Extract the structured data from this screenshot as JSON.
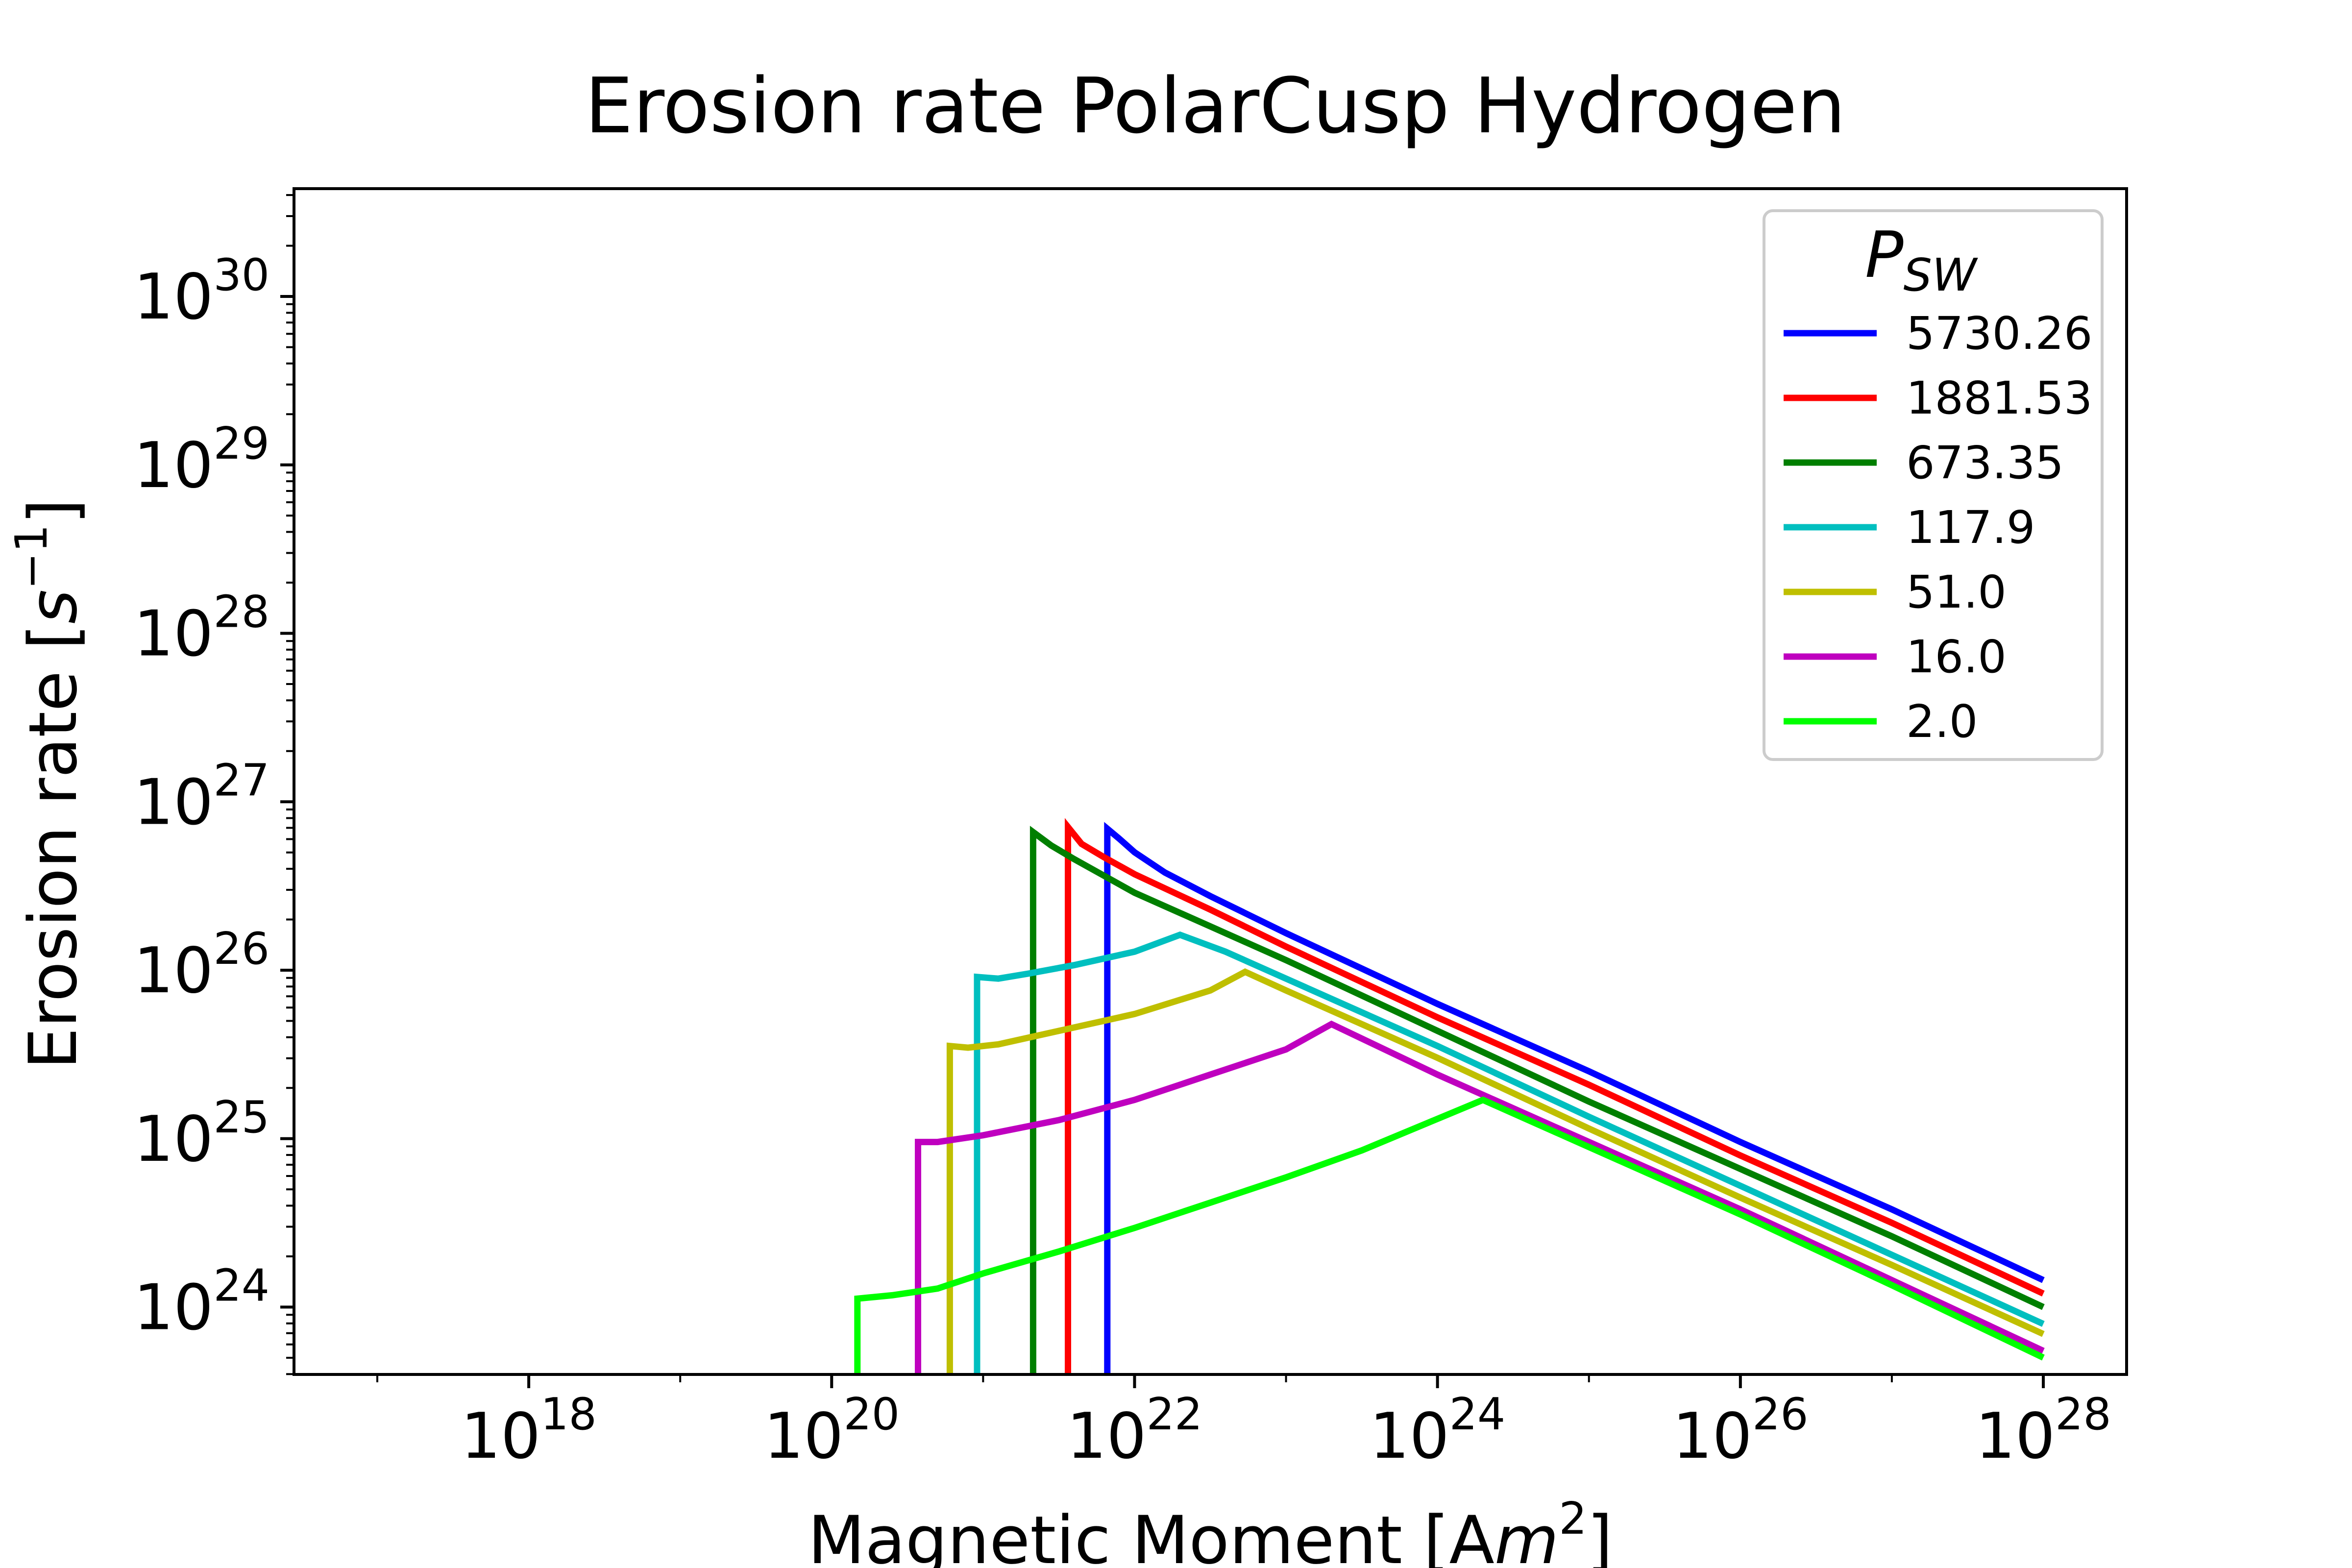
{
  "chart_data": {
    "type": "line",
    "title": "Erosion rate PolarCusp Hydrogen",
    "xlabel": {
      "main": "Magnetic Moment [A",
      "italic": "m",
      "sup": "2",
      "end": "]"
    },
    "ylabel": {
      "main": "Erosion rate [",
      "italic": "s",
      "sup": "−1",
      "end": "]"
    },
    "x_scale": "log",
    "y_scale": "log",
    "xlim_log10": [
      16.45,
      28.55
    ],
    "ylim_log10": [
      23.6,
      30.64
    ],
    "x_ticks": [
      {
        "base": "10",
        "exp": "18",
        "log": 18
      },
      {
        "base": "10",
        "exp": "20",
        "log": 20
      },
      {
        "base": "10",
        "exp": "22",
        "log": 22
      },
      {
        "base": "10",
        "exp": "24",
        "log": 24
      },
      {
        "base": "10",
        "exp": "26",
        "log": 26
      },
      {
        "base": "10",
        "exp": "28",
        "log": 28
      }
    ],
    "y_ticks": [
      {
        "base": "10",
        "exp": "24",
        "log": 24
      },
      {
        "base": "10",
        "exp": "25",
        "log": 25
      },
      {
        "base": "10",
        "exp": "26",
        "log": 26
      },
      {
        "base": "10",
        "exp": "27",
        "log": 27
      },
      {
        "base": "10",
        "exp": "28",
        "log": 28
      },
      {
        "base": "10",
        "exp": "29",
        "log": 29
      },
      {
        "base": "10",
        "exp": "30",
        "log": 30
      }
    ],
    "grid": false,
    "legend": {
      "title_main": "P",
      "title_sub": "SW",
      "placement": "top-right"
    },
    "series": [
      {
        "name": "5730.26",
        "color": "#0000ff",
        "points": [
          [
            21.82,
            23.6
          ],
          [
            21.82,
            26.84
          ],
          [
            21.9,
            26.78
          ],
          [
            22.0,
            26.7
          ],
          [
            22.2,
            26.58
          ],
          [
            22.5,
            26.44
          ],
          [
            23.0,
            26.22
          ],
          [
            24.0,
            25.8
          ],
          [
            25.0,
            25.4
          ],
          [
            26.0,
            24.98
          ],
          [
            27.0,
            24.58
          ],
          [
            28.0,
            24.16
          ]
        ]
      },
      {
        "name": "1881.53",
        "color": "#ff0000",
        "points": [
          [
            21.56,
            23.6
          ],
          [
            21.56,
            26.85
          ],
          [
            21.65,
            26.75
          ],
          [
            21.8,
            26.67
          ],
          [
            22.0,
            26.57
          ],
          [
            22.5,
            26.36
          ],
          [
            23.0,
            26.14
          ],
          [
            24.0,
            25.72
          ],
          [
            25.0,
            25.32
          ],
          [
            26.0,
            24.9
          ],
          [
            27.0,
            24.5
          ],
          [
            28.0,
            24.08
          ]
        ]
      },
      {
        "name": "673.35",
        "color": "#007f00",
        "points": [
          [
            21.33,
            23.6
          ],
          [
            21.33,
            26.82
          ],
          [
            21.45,
            26.74
          ],
          [
            21.6,
            26.66
          ],
          [
            21.8,
            26.56
          ],
          [
            22.0,
            26.46
          ],
          [
            22.5,
            26.26
          ],
          [
            23.0,
            26.06
          ],
          [
            24.0,
            25.64
          ],
          [
            25.0,
            25.22
          ],
          [
            26.0,
            24.82
          ],
          [
            27.0,
            24.42
          ],
          [
            28.0,
            24.0
          ]
        ]
      },
      {
        "name": "117.9",
        "color": "#00bfbf",
        "points": [
          [
            20.96,
            23.6
          ],
          [
            20.96,
            25.96
          ],
          [
            21.1,
            25.95
          ],
          [
            21.3,
            25.98
          ],
          [
            21.6,
            26.03
          ],
          [
            22.0,
            26.11
          ],
          [
            22.3,
            26.21
          ],
          [
            22.6,
            26.11
          ],
          [
            23.0,
            25.95
          ],
          [
            24.0,
            25.55
          ],
          [
            25.0,
            25.13
          ],
          [
            26.0,
            24.72
          ],
          [
            27.0,
            24.31
          ],
          [
            28.0,
            23.9
          ]
        ]
      },
      {
        "name": "51.0",
        "color": "#bfbf00",
        "points": [
          [
            20.78,
            23.6
          ],
          [
            20.78,
            25.55
          ],
          [
            20.9,
            25.54
          ],
          [
            21.1,
            25.56
          ],
          [
            21.5,
            25.64
          ],
          [
            22.0,
            25.74
          ],
          [
            22.5,
            25.88
          ],
          [
            22.73,
            25.99
          ],
          [
            23.0,
            25.88
          ],
          [
            24.0,
            25.48
          ],
          [
            25.0,
            25.06
          ],
          [
            26.0,
            24.65
          ],
          [
            27.0,
            24.25
          ],
          [
            28.0,
            23.84
          ]
        ]
      },
      {
        "name": "16.0",
        "color": "#bf00bf",
        "points": [
          [
            20.57,
            23.6
          ],
          [
            20.57,
            24.98
          ],
          [
            20.7,
            24.98
          ],
          [
            21.0,
            25.02
          ],
          [
            21.5,
            25.11
          ],
          [
            22.0,
            25.23
          ],
          [
            22.5,
            25.38
          ],
          [
            23.0,
            25.53
          ],
          [
            23.3,
            25.68
          ],
          [
            24.0,
            25.38
          ],
          [
            25.0,
            24.98
          ],
          [
            26.0,
            24.58
          ],
          [
            27.0,
            24.16
          ],
          [
            28.0,
            23.74
          ]
        ]
      },
      {
        "name": "2.0",
        "color": "#00ff00",
        "points": [
          [
            20.17,
            23.6
          ],
          [
            20.17,
            24.05
          ],
          [
            20.4,
            24.07
          ],
          [
            20.7,
            24.11
          ],
          [
            21.0,
            24.2
          ],
          [
            21.5,
            24.33
          ],
          [
            22.0,
            24.47
          ],
          [
            22.5,
            24.62
          ],
          [
            23.0,
            24.77
          ],
          [
            23.5,
            24.93
          ],
          [
            24.3,
            25.23
          ],
          [
            25.0,
            24.95
          ],
          [
            26.0,
            24.55
          ],
          [
            27.0,
            24.13
          ],
          [
            28.0,
            23.7
          ]
        ]
      }
    ]
  }
}
